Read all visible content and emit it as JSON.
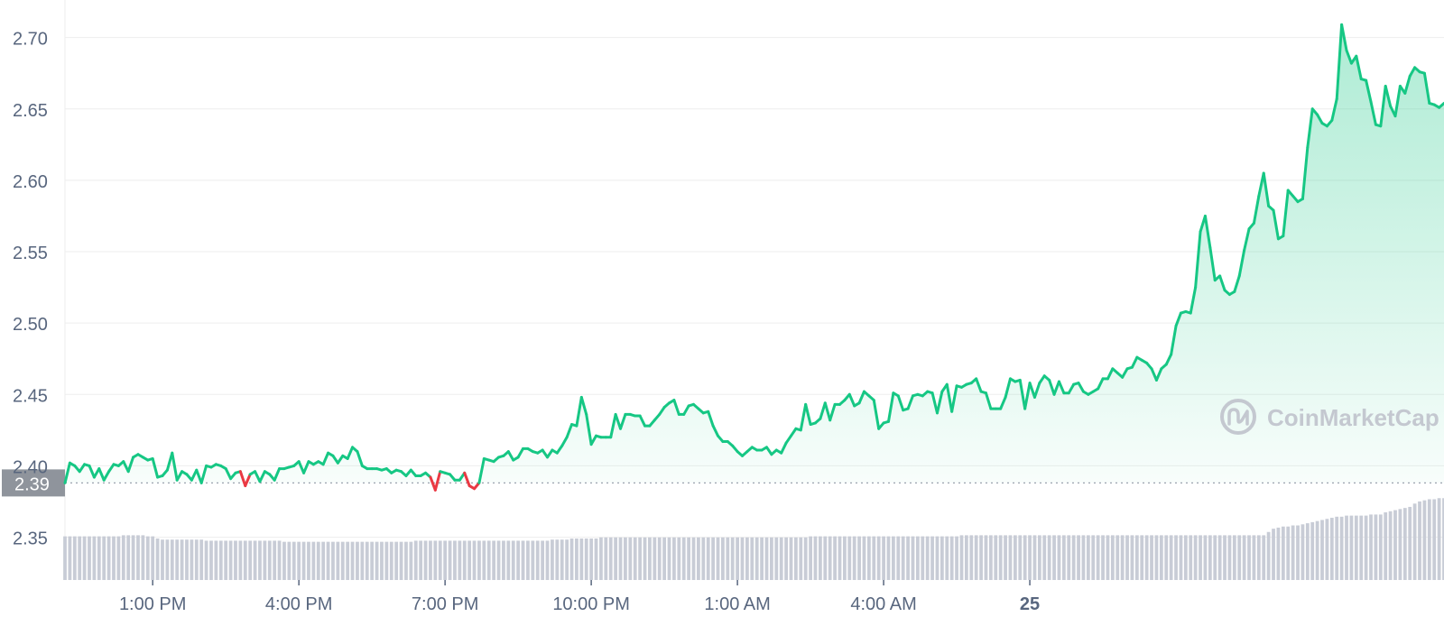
{
  "colors": {
    "line_up": "#16c784",
    "line_down": "#ea3943",
    "fill_top": "#16c784",
    "grid": "#eeeeee",
    "axis_text": "#58667e",
    "volume": "#c8ccd6",
    "baseline": "#9aa1ad",
    "badge_bg": "#8f949c",
    "badge_text": "#ffffff",
    "watermark": "#c4c8d0"
  },
  "watermark": {
    "text": "CoinMarketCap",
    "icon": "coinmarketcap-logo-icon"
  },
  "chart_data": {
    "type": "area",
    "ylim": [
      2.32,
      2.72
    ],
    "yticks": [
      "2.70",
      "2.65",
      "2.60",
      "2.55",
      "2.50",
      "2.45",
      "2.40",
      "2.35"
    ],
    "ytick_values": [
      2.7,
      2.65,
      2.6,
      2.55,
      2.5,
      2.45,
      2.4,
      2.35
    ],
    "xticks": [
      {
        "label": "1:00 PM",
        "bold": false
      },
      {
        "label": "4:00 PM",
        "bold": false
      },
      {
        "label": "7:00 PM",
        "bold": false
      },
      {
        "label": "10:00 PM",
        "bold": false
      },
      {
        "label": "1:00 AM",
        "bold": false
      },
      {
        "label": "4:00 AM",
        "bold": false
      },
      {
        "label": "25",
        "bold": true
      }
    ],
    "xtick_index": [
      18,
      48,
      78,
      108,
      138,
      168,
      198
    ],
    "baseline": {
      "value": 2.388,
      "label": "2.39"
    },
    "grid": true,
    "series": [
      {
        "values": [
          2.388,
          2.402,
          2.4,
          2.396,
          2.401,
          2.4,
          2.392,
          2.398,
          2.39,
          2.396,
          2.401,
          2.4,
          2.403,
          2.396,
          2.406,
          2.408,
          2.406,
          2.404,
          2.405,
          2.392,
          2.393,
          2.397,
          2.409,
          2.39,
          2.396,
          2.394,
          2.39,
          2.397,
          2.388,
          2.4,
          2.399,
          2.401,
          2.4,
          2.398,
          2.391,
          2.395,
          2.396,
          2.386,
          2.394,
          2.396,
          2.389,
          2.396,
          2.394,
          2.39,
          2.398,
          2.398,
          2.399,
          2.4,
          2.403,
          2.395,
          2.403,
          2.401,
          2.403,
          2.401,
          2.409,
          2.407,
          2.402,
          2.407,
          2.405,
          2.413,
          2.41,
          2.4,
          2.398,
          2.398,
          2.398,
          2.397,
          2.398,
          2.395,
          2.397,
          2.396,
          2.393,
          2.397,
          2.393,
          2.393,
          2.395,
          2.392,
          2.383,
          2.396,
          2.395,
          2.394,
          2.39,
          2.39,
          2.395,
          2.386,
          2.384,
          2.388,
          2.405,
          2.404,
          2.403,
          2.406,
          2.407,
          2.41,
          2.404,
          2.406,
          2.412,
          2.412,
          2.41,
          2.409,
          2.411,
          2.406,
          2.411,
          2.409,
          2.414,
          2.42,
          2.429,
          2.428,
          2.448,
          2.436,
          2.415,
          2.421,
          2.42,
          2.42,
          2.42,
          2.436,
          2.426,
          2.436,
          2.436,
          2.435,
          2.435,
          2.428,
          2.428,
          2.432,
          2.436,
          2.441,
          2.444,
          2.446,
          2.436,
          2.436,
          2.442,
          2.443,
          2.44,
          2.437,
          2.438,
          2.428,
          2.421,
          2.417,
          2.417,
          2.414,
          2.41,
          2.407,
          2.41,
          2.413,
          2.411,
          2.411,
          2.413,
          2.408,
          2.411,
          2.409,
          2.416,
          2.421,
          2.426,
          2.425,
          2.443,
          2.429,
          2.43,
          2.433,
          2.444,
          2.432,
          2.443,
          2.443,
          2.446,
          2.45,
          2.442,
          2.444,
          2.452,
          2.449,
          2.446,
          2.426,
          2.43,
          2.431,
          2.451,
          2.449,
          2.439,
          2.44,
          2.449,
          2.45,
          2.449,
          2.452,
          2.451,
          2.437,
          2.452,
          2.457,
          2.438,
          2.456,
          2.455,
          2.457,
          2.458,
          2.461,
          2.452,
          2.451,
          2.44,
          2.44,
          2.44,
          2.448,
          2.461,
          2.459,
          2.46,
          2.44,
          2.458,
          2.448,
          2.458,
          2.463,
          2.46,
          2.45,
          2.459,
          2.451,
          2.451,
          2.457,
          2.458,
          2.452,
          2.45,
          2.452,
          2.454,
          2.461,
          2.461,
          2.468,
          2.465,
          2.462,
          2.468,
          2.469,
          2.476,
          2.474,
          2.472,
          2.468,
          2.46,
          2.468,
          2.471,
          2.478,
          2.498,
          2.507,
          2.508,
          2.507,
          2.525,
          2.564,
          2.575,
          2.553,
          2.53,
          2.533,
          2.523,
          2.52,
          2.522,
          2.533,
          2.551,
          2.566,
          2.57,
          2.589,
          2.605,
          2.582,
          2.579,
          2.559,
          2.561,
          2.593,
          2.589,
          2.585,
          2.587,
          2.623,
          2.65,
          2.646,
          2.64,
          2.638,
          2.642,
          2.657,
          2.709,
          2.691,
          2.682,
          2.687,
          2.671,
          2.67,
          2.655,
          2.639,
          2.638,
          2.666,
          2.652,
          2.645,
          2.666,
          2.661,
          2.673,
          2.679,
          2.676,
          2.675,
          2.654,
          2.653,
          2.651,
          2.654
        ]
      }
    ],
    "volume": [
      0.4,
      0.4,
      0.4,
      0.4,
      0.4,
      0.4,
      0.4,
      0.4,
      0.4,
      0.4,
      0.4,
      0.4,
      0.41,
      0.41,
      0.41,
      0.41,
      0.41,
      0.4,
      0.4,
      0.38,
      0.37,
      0.37,
      0.37,
      0.37,
      0.37,
      0.37,
      0.37,
      0.37,
      0.37,
      0.36,
      0.36,
      0.36,
      0.36,
      0.36,
      0.36,
      0.36,
      0.36,
      0.36,
      0.36,
      0.36,
      0.36,
      0.36,
      0.36,
      0.36,
      0.36,
      0.35,
      0.35,
      0.35,
      0.35,
      0.35,
      0.35,
      0.35,
      0.35,
      0.35,
      0.35,
      0.35,
      0.35,
      0.35,
      0.35,
      0.35,
      0.35,
      0.35,
      0.35,
      0.35,
      0.35,
      0.35,
      0.35,
      0.35,
      0.35,
      0.35,
      0.35,
      0.35,
      0.36,
      0.36,
      0.36,
      0.36,
      0.36,
      0.36,
      0.36,
      0.36,
      0.36,
      0.36,
      0.36,
      0.36,
      0.36,
      0.36,
      0.36,
      0.36,
      0.36,
      0.36,
      0.36,
      0.36,
      0.36,
      0.36,
      0.36,
      0.36,
      0.36,
      0.36,
      0.36,
      0.36,
      0.37,
      0.37,
      0.37,
      0.37,
      0.38,
      0.38,
      0.38,
      0.38,
      0.38,
      0.38,
      0.39,
      0.39,
      0.39,
      0.39,
      0.39,
      0.39,
      0.39,
      0.39,
      0.39,
      0.39,
      0.39,
      0.39,
      0.39,
      0.39,
      0.39,
      0.39,
      0.39,
      0.39,
      0.39,
      0.39,
      0.39,
      0.39,
      0.39,
      0.39,
      0.39,
      0.39,
      0.39,
      0.39,
      0.39,
      0.39,
      0.39,
      0.39,
      0.39,
      0.39,
      0.39,
      0.39,
      0.39,
      0.39,
      0.39,
      0.39,
      0.39,
      0.39,
      0.39,
      0.4,
      0.4,
      0.4,
      0.4,
      0.4,
      0.4,
      0.4,
      0.4,
      0.4,
      0.4,
      0.4,
      0.4,
      0.4,
      0.4,
      0.4,
      0.4,
      0.4,
      0.4,
      0.4,
      0.4,
      0.4,
      0.4,
      0.4,
      0.4,
      0.4,
      0.4,
      0.4,
      0.4,
      0.4,
      0.4,
      0.4,
      0.41,
      0.41,
      0.41,
      0.41,
      0.41,
      0.41,
      0.41,
      0.41,
      0.41,
      0.41,
      0.41,
      0.41,
      0.41,
      0.41,
      0.41,
      0.41,
      0.41,
      0.41,
      0.41,
      0.41,
      0.41,
      0.41,
      0.41,
      0.41,
      0.41,
      0.41,
      0.41,
      0.41,
      0.41,
      0.41,
      0.41,
      0.41,
      0.41,
      0.41,
      0.41,
      0.41,
      0.41,
      0.41,
      0.41,
      0.41,
      0.41,
      0.41,
      0.41,
      0.41,
      0.41,
      0.41,
      0.41,
      0.41,
      0.41,
      0.41,
      0.41,
      0.41,
      0.41,
      0.41,
      0.41,
      0.41,
      0.41,
      0.41,
      0.41,
      0.41,
      0.41,
      0.41,
      0.41,
      0.44,
      0.47,
      0.48,
      0.49,
      0.49,
      0.5,
      0.5,
      0.51,
      0.52,
      0.53,
      0.54,
      0.55,
      0.56,
      0.57,
      0.58,
      0.58,
      0.59,
      0.59,
      0.59,
      0.59,
      0.59,
      0.6,
      0.6,
      0.6,
      0.62,
      0.63,
      0.64,
      0.65,
      0.66,
      0.67,
      0.7,
      0.72,
      0.73,
      0.74,
      0.74,
      0.75,
      0.75,
      0.76,
      0.76,
      0.77,
      0.77,
      0.78,
      0.78,
      0.79,
      0.79,
      0.8,
      0.8,
      0.8,
      0.81,
      0.81,
      0.81,
      0.81,
      0.81
    ]
  }
}
